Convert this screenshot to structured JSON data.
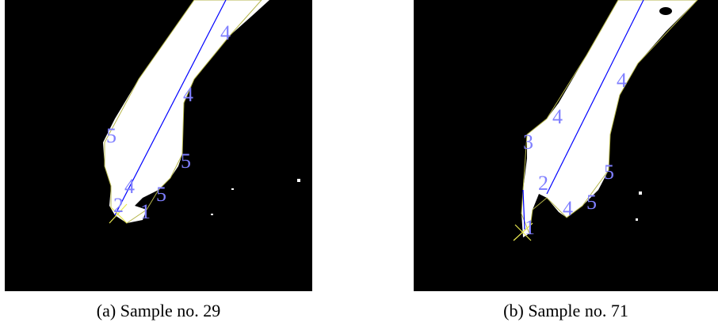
{
  "panels": [
    {
      "caption": "(a) Sample no. 29",
      "labels": [
        "4",
        "4",
        "5",
        "5",
        "4",
        "5",
        "2",
        "1"
      ]
    },
    {
      "caption": "(b) Sample no. 71",
      "labels": [
        "4",
        "4",
        "3",
        "5",
        "2",
        "5",
        "4",
        "1"
      ]
    }
  ]
}
